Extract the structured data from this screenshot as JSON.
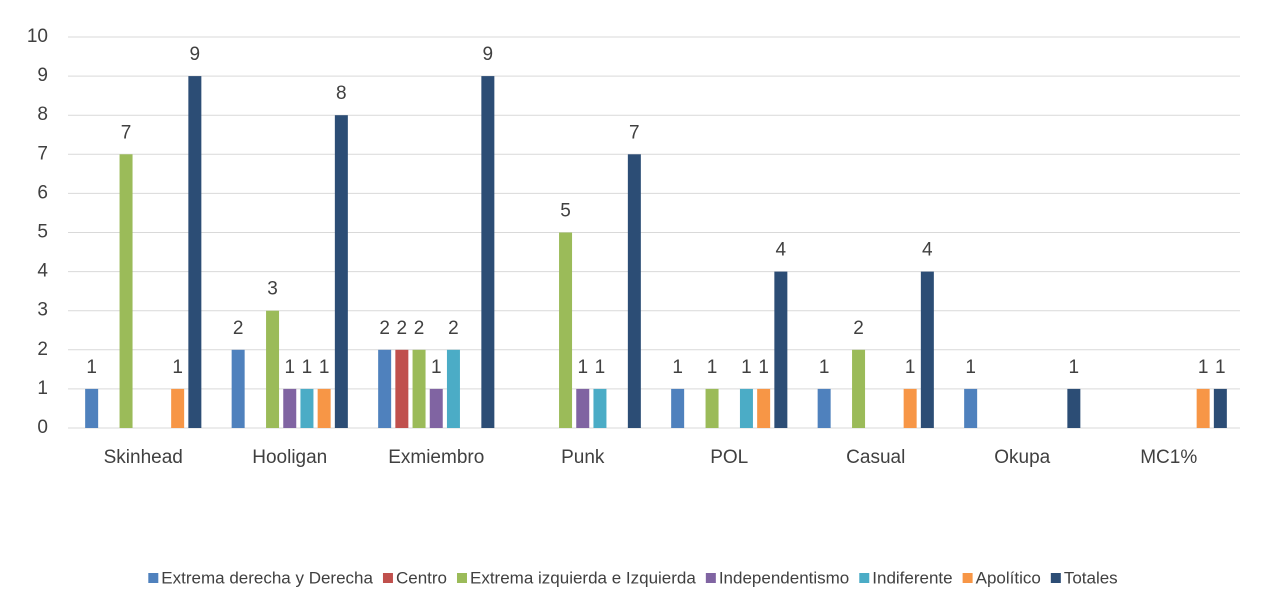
{
  "chart_data": {
    "type": "bar",
    "categories": [
      "Skinhead",
      "Hooligan",
      "Exmiembro",
      "Punk",
      "POL",
      "Casual",
      "Okupa",
      "MC1%"
    ],
    "series": [
      {
        "name": "Extrema derecha y Derecha",
        "color": "#4f81bd",
        "values": [
          1,
          2,
          2,
          null,
          1,
          1,
          1,
          null
        ]
      },
      {
        "name": "Centro",
        "color": "#c0504d",
        "values": [
          null,
          null,
          2,
          null,
          null,
          null,
          null,
          null
        ]
      },
      {
        "name": "Extrema izquierda e Izquierda",
        "color": "#9bbb59",
        "values": [
          7,
          3,
          2,
          5,
          1,
          2,
          null,
          null
        ]
      },
      {
        "name": "Independentismo",
        "color": "#8064a2",
        "values": [
          null,
          1,
          1,
          1,
          null,
          null,
          null,
          null
        ]
      },
      {
        "name": "Indiferente",
        "color": "#4bacc6",
        "values": [
          null,
          1,
          2,
          1,
          1,
          null,
          null,
          null
        ]
      },
      {
        "name": "Apolítico",
        "color": "#f79646",
        "values": [
          1,
          1,
          null,
          null,
          1,
          1,
          null,
          1
        ]
      },
      {
        "name": "Totales",
        "color": "#2c4d75",
        "values": [
          9,
          8,
          9,
          7,
          4,
          4,
          1,
          1
        ]
      }
    ],
    "ylim": [
      0,
      10
    ],
    "yticks": [
      0,
      1,
      2,
      3,
      4,
      5,
      6,
      7,
      8,
      9,
      10
    ],
    "grid": true,
    "legend": "bottom"
  }
}
